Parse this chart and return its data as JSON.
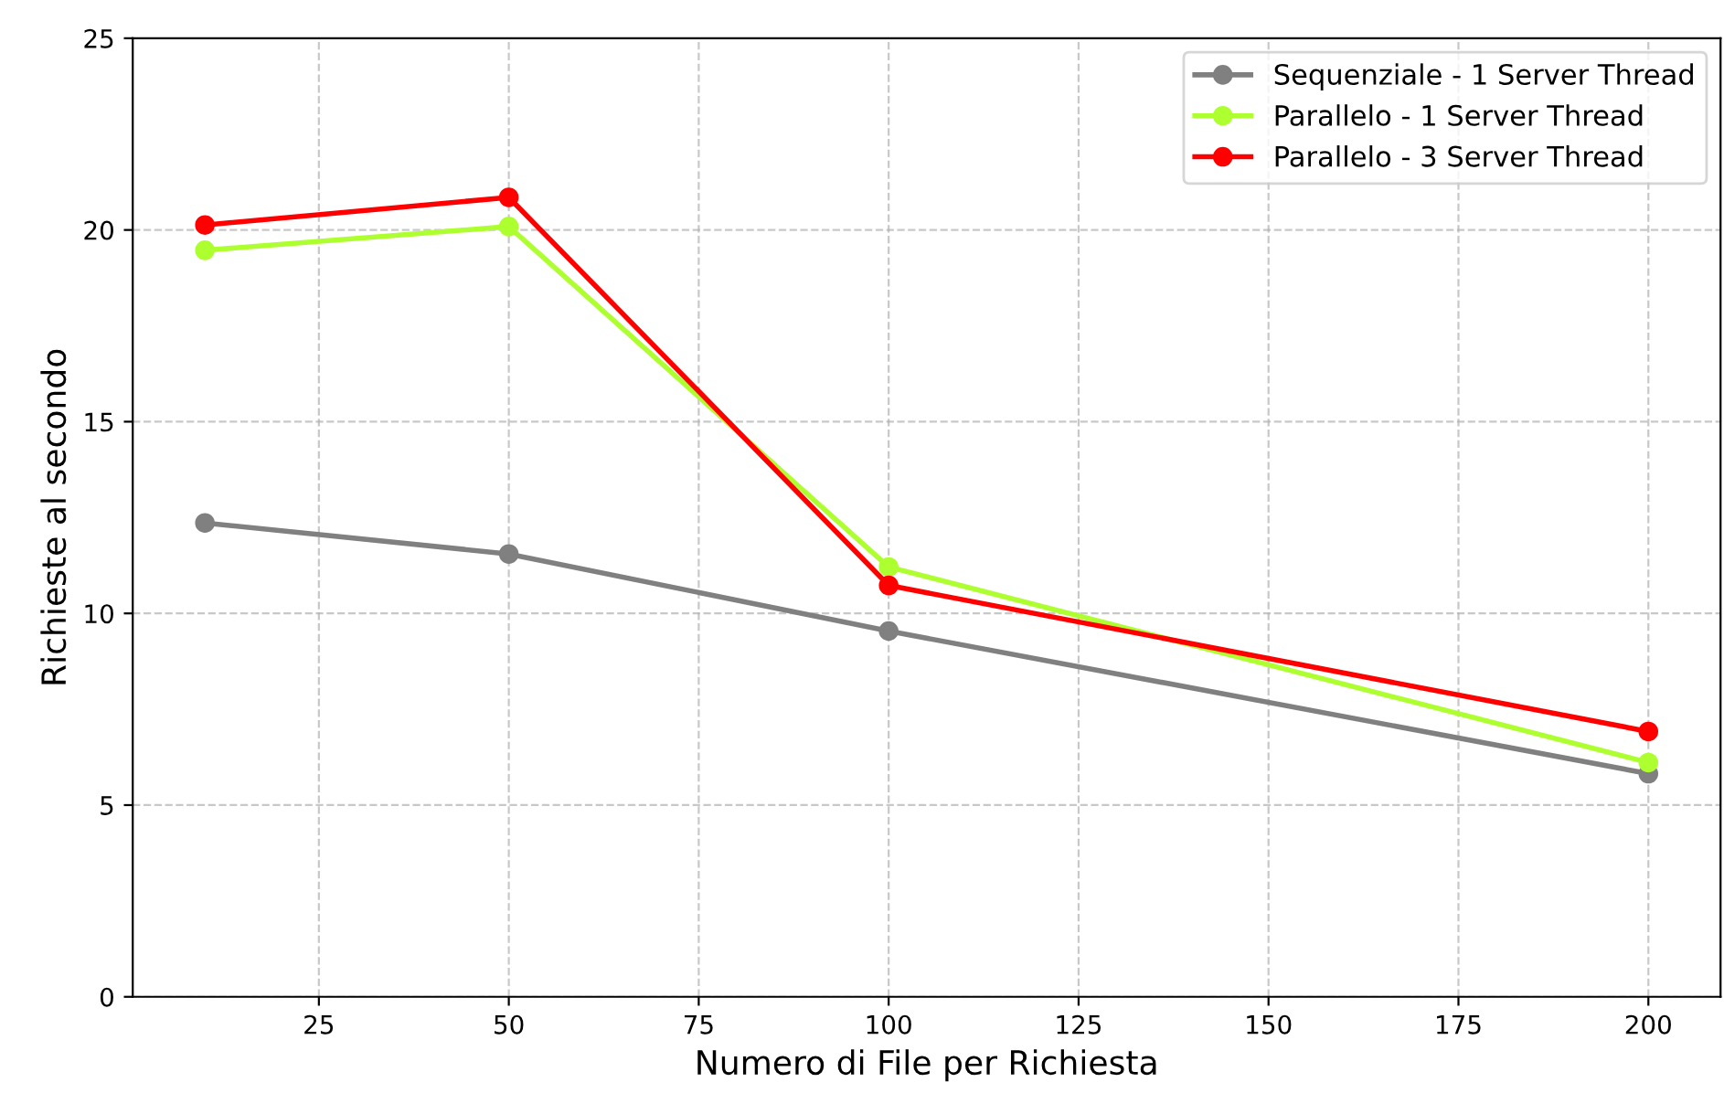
{
  "chart_data": {
    "type": "line",
    "xlabel": "Numero di File per Richiesta",
    "ylabel": "Richieste al secondo",
    "x": [
      10,
      50,
      100,
      200
    ],
    "series": [
      {
        "name": "Sequenziale - 1 Server Thread",
        "color": "#808080",
        "values": [
          12.36,
          11.55,
          9.54,
          5.82
        ]
      },
      {
        "name": "Parallelo - 1 Server Thread",
        "color": "#adff2f",
        "values": [
          19.47,
          20.09,
          11.21,
          6.11
        ]
      },
      {
        "name": "Parallelo - 3 Server Thread",
        "color": "#ff0000",
        "values": [
          20.13,
          20.85,
          10.73,
          6.92
        ]
      }
    ],
    "xlim": [
      0.5,
      209.5
    ],
    "xticks": [
      25,
      50,
      75,
      100,
      125,
      150,
      175,
      200
    ],
    "ylim": [
      0,
      25
    ],
    "yticks": [
      0,
      5,
      10,
      15,
      20,
      25
    ],
    "grid": true,
    "legend": "top right",
    "marker": "circle",
    "line_style": "solid"
  }
}
